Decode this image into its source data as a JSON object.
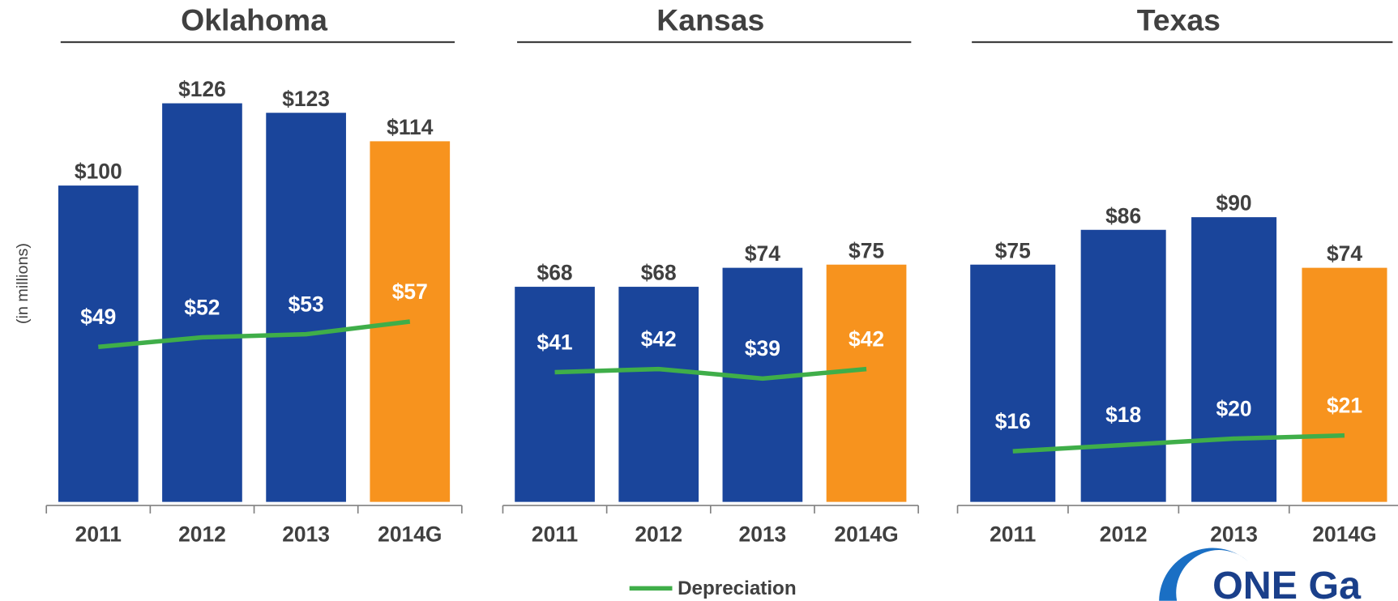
{
  "chart_data": [
    {
      "type": "bar",
      "title": "Oklahoma",
      "ylabel": "(in millions)",
      "categories": [
        "2011",
        "2012",
        "2013",
        "2014G"
      ],
      "ylim": [
        0,
        150
      ],
      "series": [
        {
          "values": [
            100,
            126,
            123,
            114
          ],
          "value_labels": [
            "$100",
            "$126",
            "$123",
            "$114"
          ],
          "colors": [
            "#1a459b",
            "#1a459b",
            "#1a459b",
            "#f7931e"
          ]
        },
        {
          "type": "line",
          "name": "Depreciation",
          "color": "#3fae49",
          "values": [
            49,
            52,
            53,
            57
          ],
          "value_labels": [
            "$49",
            "$52",
            "$53",
            "$57"
          ]
        }
      ]
    },
    {
      "type": "bar",
      "title": "Kansas",
      "categories": [
        "2011",
        "2012",
        "2013",
        "2014G"
      ],
      "ylim": [
        0,
        150
      ],
      "series": [
        {
          "values": [
            68,
            68,
            74,
            75
          ],
          "value_labels": [
            "$68",
            "$68",
            "$74",
            "$75"
          ],
          "colors": [
            "#1a459b",
            "#1a459b",
            "#1a459b",
            "#f7931e"
          ]
        },
        {
          "type": "line",
          "color": "#3fae49",
          "values": [
            41,
            42,
            39,
            42
          ],
          "value_labels": [
            "$41",
            "$42",
            "$39",
            "$42"
          ]
        }
      ]
    },
    {
      "type": "bar",
      "title": "Texas",
      "categories": [
        "2011",
        "2012",
        "2013",
        "2014G"
      ],
      "ylim": [
        0,
        150
      ],
      "series": [
        {
          "values": [
            75,
            86,
            90,
            74
          ],
          "value_labels": [
            "$75",
            "$86",
            "$90",
            "$74"
          ],
          "colors": [
            "#1a459b",
            "#1a459b",
            "#1a459b",
            "#f7931e"
          ]
        },
        {
          "type": "line",
          "color": "#3fae49",
          "values": [
            16,
            18,
            20,
            21
          ],
          "value_labels": [
            "$16",
            "$18",
            "$20",
            "$21"
          ]
        }
      ]
    }
  ],
  "logo": "ONE Ga"
}
